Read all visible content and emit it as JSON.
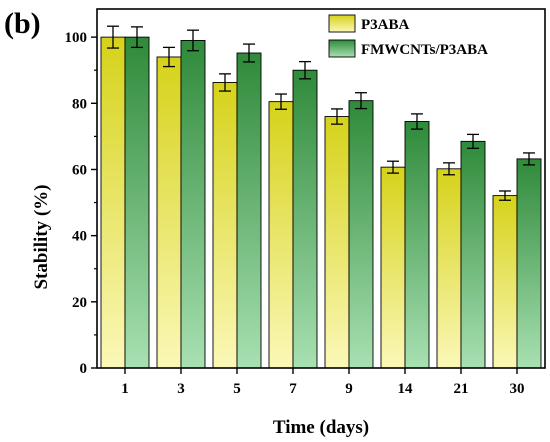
{
  "panel_label": "(b)",
  "colors": {
    "series_1_top": "#d6d21a",
    "series_1_bottom": "#fbf8b8",
    "series_2_top": "#2f8a3a",
    "series_2_bottom": "#a8e0b2",
    "axis": "#000000"
  },
  "chart_data": {
    "type": "bar",
    "categories": [
      "1",
      "3",
      "5",
      "7",
      "9",
      "14",
      "21",
      "30"
    ],
    "series": [
      {
        "name": "P3ABA",
        "values": [
          100,
          94,
          86.3,
          80.5,
          76,
          60.7,
          60.2,
          52.1
        ],
        "errors": [
          3.3,
          2.9,
          2.6,
          2.3,
          2.3,
          1.8,
          1.8,
          1.4
        ]
      },
      {
        "name": "FMWCNTs/P3ABA",
        "values": [
          100,
          99,
          95.2,
          90,
          80.8,
          74.5,
          68.5,
          63.2
        ],
        "errors": [
          3.1,
          3.1,
          2.7,
          2.6,
          2.4,
          2.3,
          2.1,
          1.8
        ]
      }
    ],
    "xlabel": "Time (days)",
    "ylabel": "Stability (%)",
    "ylim": [
      0,
      100
    ],
    "yticks": [
      0,
      20,
      40,
      60,
      80,
      100
    ],
    "legend_position": "top-right",
    "grid": false
  }
}
